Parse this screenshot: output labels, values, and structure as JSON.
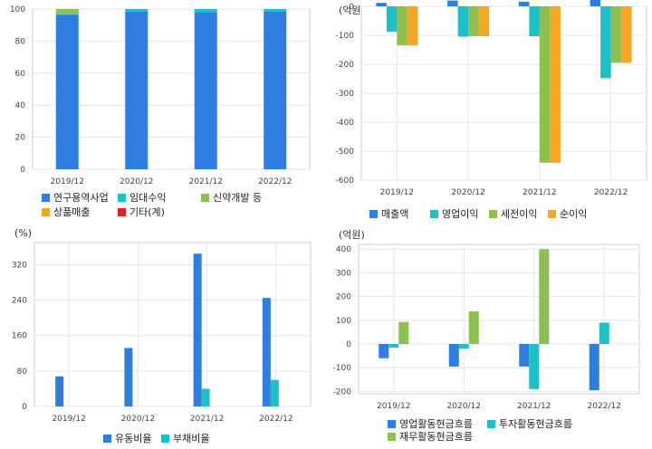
{
  "colors": {
    "blue": "#2e7de1",
    "teal": "#1ec0c8",
    "green": "#8cc152",
    "orange": "#f5a623",
    "red": "#e02424"
  },
  "chart_data": [
    {
      "id": "revenue-mix",
      "type": "stacked-bar",
      "unit": "",
      "categories": [
        "2019/12",
        "2020/12",
        "2021/12",
        "2022/12"
      ],
      "ylim": [
        0,
        100
      ],
      "yticks": [
        0,
        20,
        40,
        60,
        80,
        100
      ],
      "series": [
        {
          "name": "연구용역사업",
          "color": "blue",
          "values": [
            96.5,
            98.5,
            98,
            98.5
          ]
        },
        {
          "name": "임대수익",
          "color": "teal",
          "values": [
            0.5,
            1.5,
            2,
            1.5
          ]
        },
        {
          "name": "신약개발 등",
          "color": "green",
          "values": [
            3,
            0,
            0,
            0
          ]
        },
        {
          "name": "상품매출",
          "color": "orange",
          "values": [
            0,
            0,
            0,
            0
          ]
        },
        {
          "name": "기타(계)",
          "color": "red",
          "values": [
            0,
            0,
            0,
            0
          ]
        }
      ]
    },
    {
      "id": "income",
      "type": "bar",
      "unit": "(억원)",
      "categories": [
        "2019/12",
        "2020/12",
        "2021/12",
        "2022/12"
      ],
      "ylim": [
        -600,
        0
      ],
      "yticks": [
        0,
        -100,
        -200,
        -300,
        -400,
        -500,
        -600
      ],
      "series": [
        {
          "name": "매출액",
          "color": "blue",
          "values": [
            12,
            20,
            16,
            28
          ]
        },
        {
          "name": "영업이익",
          "color": "teal",
          "values": [
            -88,
            -105,
            -103,
            -248
          ]
        },
        {
          "name": "세전이익",
          "color": "green",
          "values": [
            -135,
            -103,
            -540,
            -195
          ]
        },
        {
          "name": "순이익",
          "color": "orange",
          "values": [
            -135,
            -103,
            -540,
            -195
          ]
        }
      ]
    },
    {
      "id": "ratios",
      "type": "bar",
      "unit": "(%)",
      "categories": [
        "2019/12",
        "2020/12",
        "2021/12",
        "2022/12"
      ],
      "ylim": [
        0,
        370
      ],
      "yticks": [
        0,
        80,
        160,
        240,
        320
      ],
      "series": [
        {
          "name": "유동비율",
          "color": "blue",
          "values": [
            68,
            132,
            345,
            245
          ]
        },
        {
          "name": "부채비율",
          "color": "teal",
          "values": [
            0,
            0,
            40,
            60
          ]
        }
      ]
    },
    {
      "id": "cashflow",
      "type": "bar",
      "unit": "(억원)",
      "categories": [
        "2019/12",
        "2020/12",
        "2021/12",
        "2022/12"
      ],
      "ylim": [
        -210,
        420
      ],
      "yticks": [
        400,
        300,
        200,
        100,
        0,
        -100,
        -200
      ],
      "series": [
        {
          "name": "영업활동현금흐름",
          "color": "blue",
          "values": [
            -60,
            -95,
            -95,
            -195
          ]
        },
        {
          "name": "투자활동현금흐름",
          "color": "teal",
          "values": [
            -15,
            -20,
            -190,
            90
          ]
        },
        {
          "name": "재무활동현금흐름",
          "color": "green",
          "values": [
            93,
            138,
            400,
            0
          ]
        }
      ]
    }
  ]
}
